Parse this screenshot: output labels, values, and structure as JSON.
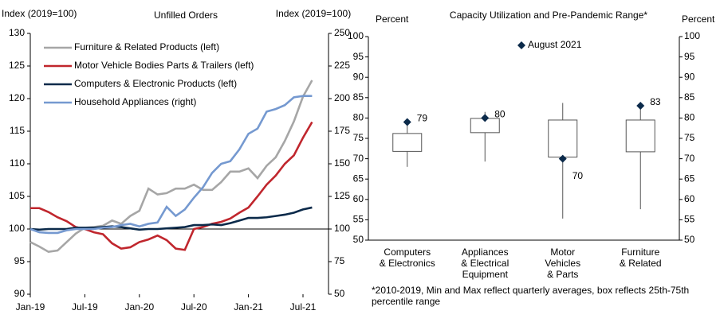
{
  "chart_data": [
    {
      "type": "line",
      "title": "Unfilled Orders",
      "ylabel": "Index (2019=100)",
      "y2label": "Index (2019=100)",
      "categories": [
        "Jan-19",
        null,
        null,
        null,
        null,
        null,
        "Jul-19",
        null,
        null,
        null,
        null,
        null,
        "Jan-20",
        null,
        null,
        null,
        null,
        null,
        "Jul-20",
        null,
        null,
        null,
        null,
        null,
        "Jan-21",
        null,
        null,
        null,
        null,
        null,
        "Jul-21",
        null
      ],
      "ylim": [
        90,
        130
      ],
      "yticks": [
        90,
        95,
        100,
        105,
        110,
        115,
        120,
        125,
        130
      ],
      "y2lim": [
        50,
        250
      ],
      "y2ticks": [
        50,
        75,
        100,
        125,
        150,
        175,
        200,
        225,
        250
      ],
      "x_axis_crossing": 100,
      "legend": "upper left",
      "series": [
        {
          "name": "Furniture & Related Products (left)",
          "color": "#a6a6a6",
          "values": [
            98,
            97.3,
            96.5,
            96.7,
            98,
            99.3,
            100.2,
            100.3,
            100.5,
            101.3,
            100.8,
            102,
            102.8,
            106.2,
            105.3,
            105.5,
            106.2,
            106.2,
            106.8,
            106,
            106,
            107.2,
            108.8,
            108.8,
            109.3,
            107.8,
            109.7,
            111,
            113.5,
            116.5,
            120.3,
            122.8
          ]
        },
        {
          "name": "Motor Vehicle Bodies Parts & Trailers (left)",
          "color": "#c0262d",
          "values": [
            103.2,
            103.2,
            102.6,
            101.8,
            101.2,
            100.3,
            100,
            99.5,
            99.2,
            97.8,
            97,
            97.2,
            98,
            98.4,
            99,
            98.3,
            97,
            96.8,
            100,
            100.3,
            100.8,
            101.1,
            101.6,
            102.5,
            103.3,
            105,
            106.8,
            108.2,
            110,
            111.3,
            114,
            116.4
          ]
        },
        {
          "name": "Computers & Electronic Products (left)",
          "color": "#0b2a4a",
          "values": [
            100,
            99.9,
            100,
            100,
            100,
            100.2,
            100.2,
            100.2,
            100.3,
            100.4,
            100.3,
            100.1,
            99.9,
            100,
            100,
            100.1,
            100.2,
            100.3,
            100.6,
            100.6,
            100.7,
            100.6,
            100.9,
            101.3,
            101.7,
            101.7,
            101.8,
            102,
            102.2,
            102.5,
            103,
            103.3
          ]
        },
        {
          "name": "Household Appliances (right)",
          "color": "#7599d0",
          "axis": "y2",
          "values": [
            100,
            97.5,
            97,
            97,
            99,
            100,
            100,
            100,
            101,
            101.5,
            103,
            104,
            102,
            104,
            105,
            117,
            110,
            115,
            124,
            132,
            143,
            150,
            152,
            161,
            173,
            177,
            190,
            192,
            195,
            201,
            202,
            202
          ]
        }
      ]
    },
    {
      "type": "box",
      "title": "Capacity Utilization and Pre-Pandemic Range*",
      "ylabel": "Percent",
      "y2label": "Percent",
      "categories": [
        "Computers\n& Electronics",
        "Appliances\n& Electrical\nEquipment",
        "Motor\nVehicles\n& Parts",
        "Furniture\n& Related"
      ],
      "ylim": [
        50,
        100
      ],
      "yticks": [
        50,
        55,
        60,
        65,
        70,
        75,
        80,
        85,
        90,
        95,
        100
      ],
      "y2lim": [
        50,
        100
      ],
      "y2ticks": [
        50,
        55,
        60,
        65,
        70,
        75,
        80,
        85,
        90,
        95,
        100
      ],
      "min": [
        68,
        69.3,
        55.3,
        57.6
      ],
      "q1": [
        71.8,
        76.4,
        70.4,
        71.7
      ],
      "q3": [
        76.2,
        79.9,
        79.5,
        79.5
      ],
      "max": [
        78.8,
        81.5,
        83.7,
        83.5
      ],
      "box_color": "#ffffff",
      "markers": {
        "name": "August 2021",
        "color": "#0b2a4a",
        "values": [
          79,
          80,
          70,
          83
        ]
      },
      "footnote": "*2010-2019, Min and Max reflect quarterly averages, box reflects 25th-75th percentile range"
    }
  ]
}
